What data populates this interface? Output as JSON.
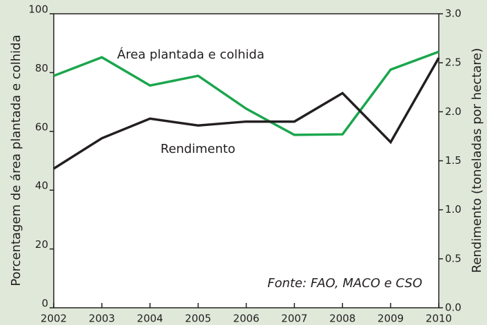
{
  "chart_data": {
    "type": "line",
    "x": [
      2002,
      2003,
      2004,
      2005,
      2006,
      2007,
      2008,
      2009,
      2010
    ],
    "xlim": [
      2002,
      2010
    ],
    "xticks": [
      2002,
      2003,
      2004,
      2005,
      2006,
      2007,
      2008,
      2009,
      2010
    ],
    "ylabel": "Porcentagem de área plantada e colhida",
    "y2label": "Rendimento (toneladas por hectare)",
    "ylim": [
      0,
      100
    ],
    "yticks": [
      0,
      20,
      40,
      60,
      80,
      100
    ],
    "y2lim": [
      0,
      3
    ],
    "y2ticks": [
      {
        "value": 0,
        "label": "0.0"
      },
      0.5,
      {
        "value": 1,
        "label": "1.0"
      },
      1.5,
      {
        "value": 2,
        "label": "2.0"
      },
      2.5,
      {
        "value": 3,
        "label": "3.0"
      }
    ],
    "series": [
      {
        "name": "Área plantada e colhida",
        "color": "#1aa64d",
        "values": [
          78.9,
          85.2,
          75.6,
          78.9,
          67.7,
          58.8,
          59.0,
          81.0,
          87.1
        ]
      },
      {
        "name": "Rendimento",
        "color": "#231f20",
        "axis": "y2",
        "values": [
          1.42,
          1.73,
          1.93,
          1.86,
          1.9,
          1.9,
          2.19,
          1.69,
          2.55
        ]
      }
    ],
    "annotation": "Fonte: FAO, MACO e CSO"
  }
}
